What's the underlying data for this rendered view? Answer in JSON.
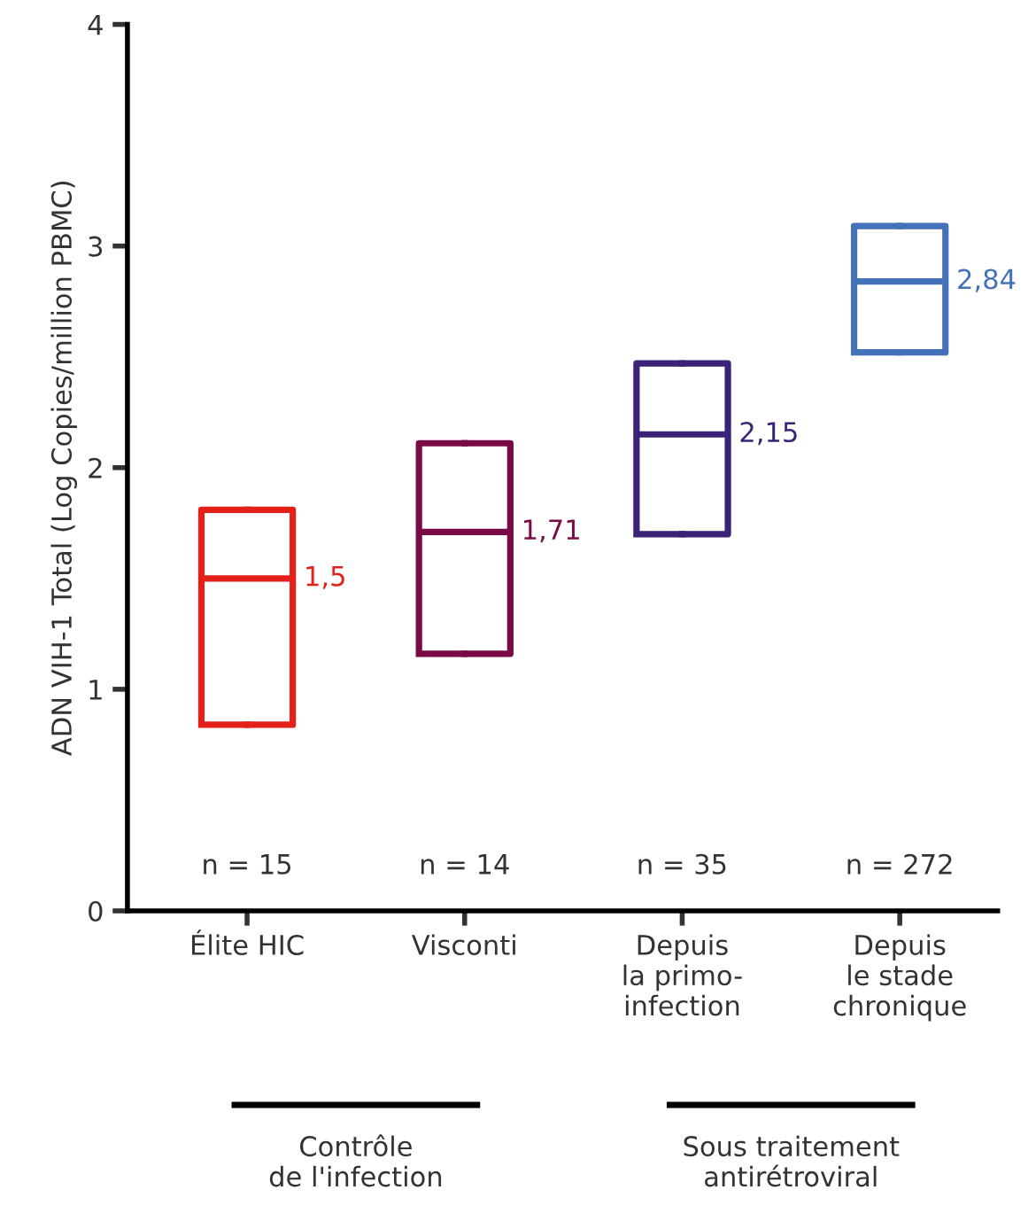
{
  "chart_data": {
    "type": "box",
    "ylabel": "ADN VIH-1 Total (Log Copies/million PBMC)",
    "categories": [
      "Élite HIC",
      "Visconti",
      "Depuis\nla primo-\ninfection",
      "Depuis\nle stade\nchronique"
    ],
    "boxes": [
      {
        "low": 0.84,
        "q1": 0.84,
        "median": 1.5,
        "q3": 1.81,
        "high": 1.81
      },
      {
        "low": 1.16,
        "q1": 1.16,
        "median": 1.71,
        "q3": 2.11,
        "high": 2.11
      },
      {
        "low": 1.7,
        "q1": 1.7,
        "median": 2.15,
        "q3": 2.47,
        "high": 2.47
      },
      {
        "low": 2.52,
        "q1": 2.52,
        "median": 2.84,
        "q3": 3.09,
        "high": 3.09
      }
    ],
    "colors": [
      "#e32119",
      "#7a0a45",
      "#3a2378",
      "#4472b8"
    ],
    "value_labels": [
      "1,5",
      "1,71",
      "2,15",
      "2,84"
    ],
    "ylim": [
      0,
      4
    ],
    "yticks": [
      0,
      1,
      2,
      3,
      4
    ],
    "grid": false,
    "legend": false,
    "annotations": [
      "n = 15",
      "n = 14",
      "n = 35",
      "n = 272",
      "Contrôle\nde l'infection",
      "Sous traitement\nantirétroviral"
    ]
  }
}
